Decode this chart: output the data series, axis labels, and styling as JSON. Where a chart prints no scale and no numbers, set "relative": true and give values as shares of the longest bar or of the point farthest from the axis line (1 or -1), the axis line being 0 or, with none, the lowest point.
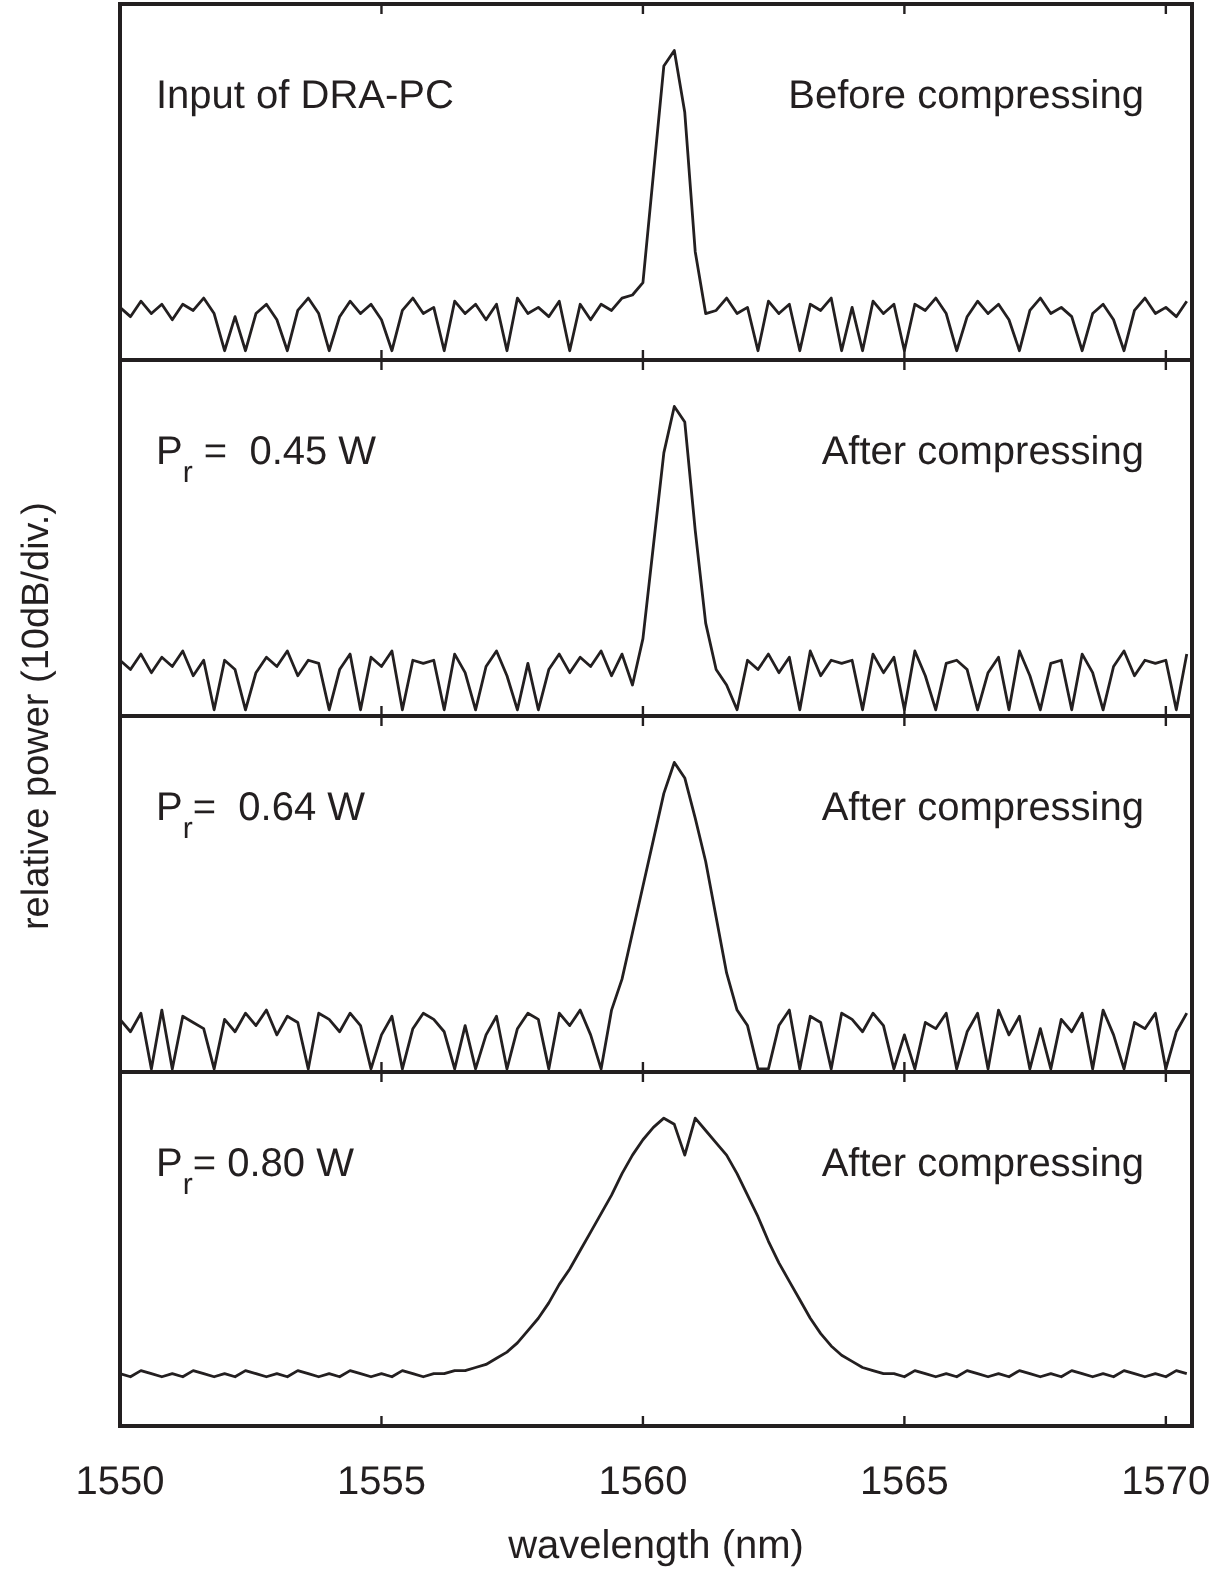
{
  "chart_data": [
    {
      "type": "line",
      "ylabel": "relative power (10dB/div.)",
      "relative": true,
      "xlim": [
        1550,
        1570.5
      ],
      "xticks": [
        1550,
        1555,
        1560,
        1565,
        1570
      ],
      "tick_labels": false,
      "annotations": [
        "Input of DRA-PC",
        "Before compressing"
      ],
      "x": [
        1550,
        1550.2,
        1550.4,
        1550.6,
        1550.8,
        1551,
        1551.2,
        1551.4,
        1551.6,
        1551.8,
        1552,
        1552.2,
        1552.4,
        1552.6,
        1552.8,
        1553,
        1553.2,
        1553.4,
        1553.6,
        1553.8,
        1554,
        1554.2,
        1554.4,
        1554.6,
        1554.8,
        1555,
        1555.2,
        1555.4,
        1555.6,
        1555.8,
        1556,
        1556.2,
        1556.4,
        1556.6,
        1556.8,
        1557,
        1557.2,
        1557.4,
        1557.6,
        1557.8,
        1558,
        1558.2,
        1558.4,
        1558.6,
        1558.8,
        1559,
        1559.2,
        1559.4,
        1559.6,
        1559.8,
        1560,
        1560.2,
        1560.4,
        1560.6,
        1560.8,
        1561,
        1561.2,
        1561.4,
        1561.6,
        1561.8,
        1562,
        1562.2,
        1562.4,
        1562.6,
        1562.8,
        1563,
        1563.2,
        1563.4,
        1563.6,
        1563.8,
        1564,
        1564.2,
        1564.4,
        1564.6,
        1564.8,
        1565,
        1565.2,
        1565.4,
        1565.6,
        1565.8,
        1566,
        1566.2,
        1566.4,
        1566.6,
        1566.8,
        1567,
        1567.2,
        1567.4,
        1567.6,
        1567.8,
        1568,
        1568.2,
        1568.4,
        1568.6,
        1568.8,
        1569,
        1569.2,
        1569.4,
        1569.6,
        1569.8,
        1570,
        1570.2,
        1570.4
      ],
      "series": [
        {
          "color": "#231f20",
          "values": [
            0.17,
            0.14,
            0.19,
            0.15,
            0.18,
            0.13,
            0.18,
            0.16,
            0.2,
            0.15,
            0.03,
            0.14,
            0.03,
            0.15,
            0.18,
            0.13,
            0.03,
            0.16,
            0.2,
            0.15,
            0.03,
            0.14,
            0.19,
            0.15,
            0.18,
            0.13,
            0.03,
            0.16,
            0.2,
            0.15,
            0.17,
            0.03,
            0.19,
            0.15,
            0.18,
            0.13,
            0.18,
            0.03,
            0.2,
            0.15,
            0.17,
            0.14,
            0.19,
            0.03,
            0.18,
            0.13,
            0.18,
            0.16,
            0.2,
            0.21,
            0.25,
            0.6,
            0.95,
            1.0,
            0.8,
            0.35,
            0.15,
            0.16,
            0.2,
            0.15,
            0.17,
            0.03,
            0.19,
            0.15,
            0.18,
            0.03,
            0.18,
            0.16,
            0.2,
            0.03,
            0.17,
            0.03,
            0.19,
            0.15,
            0.18,
            0.03,
            0.18,
            0.16,
            0.2,
            0.15,
            0.03,
            0.14,
            0.19,
            0.15,
            0.18,
            0.13,
            0.03,
            0.16,
            0.2,
            0.15,
            0.17,
            0.14,
            0.03,
            0.15,
            0.18,
            0.13,
            0.03,
            0.16,
            0.2,
            0.15,
            0.17,
            0.14,
            0.19
          ]
        }
      ]
    },
    {
      "type": "line",
      "relative": true,
      "xlim": [
        1550,
        1570.5
      ],
      "xticks": [
        1550,
        1555,
        1560,
        1565,
        1570
      ],
      "tick_labels": false,
      "annotations": [
        "P$_{r}$ =  0.45 W",
        "After compressing"
      ],
      "x": [
        1550,
        1550.2,
        1550.4,
        1550.6,
        1550.8,
        1551,
        1551.2,
        1551.4,
        1551.6,
        1551.8,
        1552,
        1552.2,
        1552.4,
        1552.6,
        1552.8,
        1553,
        1553.2,
        1553.4,
        1553.6,
        1553.8,
        1554,
        1554.2,
        1554.4,
        1554.6,
        1554.8,
        1555,
        1555.2,
        1555.4,
        1555.6,
        1555.8,
        1556,
        1556.2,
        1556.4,
        1556.6,
        1556.8,
        1557,
        1557.2,
        1557.4,
        1557.6,
        1557.8,
        1558,
        1558.2,
        1558.4,
        1558.6,
        1558.8,
        1559,
        1559.2,
        1559.4,
        1559.6,
        1559.8,
        1560,
        1560.2,
        1560.4,
        1560.6,
        1560.8,
        1561,
        1561.2,
        1561.4,
        1561.6,
        1561.8,
        1562,
        1562.2,
        1562.4,
        1562.6,
        1562.8,
        1563,
        1563.2,
        1563.4,
        1563.6,
        1563.8,
        1564,
        1564.2,
        1564.4,
        1564.6,
        1564.8,
        1565,
        1565.2,
        1565.4,
        1565.6,
        1565.8,
        1566,
        1566.2,
        1566.4,
        1566.6,
        1566.8,
        1567,
        1567.2,
        1567.4,
        1567.6,
        1567.8,
        1568,
        1568.2,
        1568.4,
        1568.6,
        1568.8,
        1569,
        1569.2,
        1569.4,
        1569.6,
        1569.8,
        1570,
        1570.2,
        1570.4
      ],
      "series": [
        {
          "color": "#231f20",
          "values": [
            0.18,
            0.15,
            0.2,
            0.14,
            0.19,
            0.16,
            0.21,
            0.13,
            0.18,
            0.02,
            0.18,
            0.15,
            0.02,
            0.14,
            0.19,
            0.16,
            0.21,
            0.13,
            0.18,
            0.17,
            0.02,
            0.15,
            0.2,
            0.02,
            0.19,
            0.16,
            0.21,
            0.02,
            0.18,
            0.17,
            0.18,
            0.02,
            0.2,
            0.14,
            0.02,
            0.16,
            0.21,
            0.13,
            0.02,
            0.17,
            0.02,
            0.15,
            0.2,
            0.14,
            0.19,
            0.16,
            0.21,
            0.13,
            0.2,
            0.1,
            0.25,
            0.55,
            0.85,
            1.0,
            0.95,
            0.6,
            0.3,
            0.15,
            0.1,
            0.02,
            0.18,
            0.15,
            0.2,
            0.14,
            0.19,
            0.02,
            0.21,
            0.13,
            0.18,
            0.17,
            0.18,
            0.02,
            0.2,
            0.14,
            0.19,
            0.02,
            0.21,
            0.13,
            0.02,
            0.17,
            0.18,
            0.15,
            0.02,
            0.14,
            0.19,
            0.02,
            0.21,
            0.13,
            0.02,
            0.17,
            0.18,
            0.02,
            0.2,
            0.14,
            0.02,
            0.16,
            0.21,
            0.13,
            0.18,
            0.17,
            0.18,
            0.02,
            0.2
          ]
        }
      ]
    },
    {
      "type": "line",
      "relative": true,
      "xlim": [
        1550,
        1570.5
      ],
      "xticks": [
        1550,
        1555,
        1560,
        1565,
        1570
      ],
      "tick_labels": false,
      "annotations": [
        "P$_{r}$=  0.64 W",
        "After compressing"
      ],
      "x": [
        1550,
        1550.2,
        1550.4,
        1550.6,
        1550.8,
        1551,
        1551.2,
        1551.4,
        1551.6,
        1551.8,
        1552,
        1552.2,
        1552.4,
        1552.6,
        1552.8,
        1553,
        1553.2,
        1553.4,
        1553.6,
        1553.8,
        1554,
        1554.2,
        1554.4,
        1554.6,
        1554.8,
        1555,
        1555.2,
        1555.4,
        1555.6,
        1555.8,
        1556,
        1556.2,
        1556.4,
        1556.6,
        1556.8,
        1557,
        1557.2,
        1557.4,
        1557.6,
        1557.8,
        1558,
        1558.2,
        1558.4,
        1558.6,
        1558.8,
        1559,
        1559.2,
        1559.4,
        1559.6,
        1559.8,
        1560,
        1560.2,
        1560.4,
        1560.6,
        1560.8,
        1561,
        1561.2,
        1561.4,
        1561.6,
        1561.8,
        1562,
        1562.2,
        1562.4,
        1562.6,
        1562.8,
        1563,
        1563.2,
        1563.4,
        1563.6,
        1563.8,
        1564,
        1564.2,
        1564.4,
        1564.6,
        1564.8,
        1565,
        1565.2,
        1565.4,
        1565.6,
        1565.8,
        1566,
        1566.2,
        1566.4,
        1566.6,
        1566.8,
        1567,
        1567.2,
        1567.4,
        1567.6,
        1567.8,
        1568,
        1568.2,
        1568.4,
        1568.6,
        1568.8,
        1569,
        1569.2,
        1569.4,
        1569.6,
        1569.8,
        1570,
        1570.2,
        1570.4
      ],
      "series": [
        {
          "color": "#231f20",
          "values": [
            0.17,
            0.13,
            0.19,
            0.01,
            0.2,
            0.01,
            0.18,
            0.16,
            0.14,
            0.01,
            0.17,
            0.13,
            0.19,
            0.15,
            0.2,
            0.12,
            0.18,
            0.16,
            0.01,
            0.19,
            0.17,
            0.13,
            0.19,
            0.15,
            0.01,
            0.12,
            0.18,
            0.01,
            0.14,
            0.19,
            0.17,
            0.13,
            0.01,
            0.15,
            0.01,
            0.12,
            0.18,
            0.01,
            0.14,
            0.19,
            0.17,
            0.01,
            0.19,
            0.15,
            0.2,
            0.12,
            0.01,
            0.2,
            0.3,
            0.45,
            0.6,
            0.75,
            0.9,
            1.0,
            0.95,
            0.82,
            0.68,
            0.5,
            0.32,
            0.2,
            0.15,
            0.01,
            0.01,
            0.15,
            0.2,
            0.01,
            0.18,
            0.16,
            0.01,
            0.19,
            0.17,
            0.13,
            0.19,
            0.15,
            0.01,
            0.12,
            0.01,
            0.16,
            0.14,
            0.19,
            0.01,
            0.13,
            0.19,
            0.01,
            0.2,
            0.12,
            0.18,
            0.01,
            0.14,
            0.01,
            0.17,
            0.13,
            0.19,
            0.01,
            0.2,
            0.12,
            0.01,
            0.16,
            0.14,
            0.19,
            0.01,
            0.13,
            0.19
          ]
        }
      ]
    },
    {
      "type": "line",
      "xlabel": "wavelength (nm)",
      "relative": true,
      "xlim": [
        1550,
        1570.5
      ],
      "xticks": [
        1550,
        1555,
        1560,
        1565,
        1570
      ],
      "tick_labels": "x",
      "annotations": [
        "P$_{r}$= 0.80 W",
        "After compressing"
      ],
      "x": [
        1550,
        1550.2,
        1550.4,
        1550.6,
        1550.8,
        1551,
        1551.2,
        1551.4,
        1551.6,
        1551.8,
        1552,
        1552.2,
        1552.4,
        1552.6,
        1552.8,
        1553,
        1553.2,
        1553.4,
        1553.6,
        1553.8,
        1554,
        1554.2,
        1554.4,
        1554.6,
        1554.8,
        1555,
        1555.2,
        1555.4,
        1555.6,
        1555.8,
        1556,
        1556.2,
        1556.4,
        1556.6,
        1556.8,
        1557,
        1557.2,
        1557.4,
        1557.6,
        1557.8,
        1558,
        1558.2,
        1558.4,
        1558.6,
        1558.8,
        1559,
        1559.2,
        1559.4,
        1559.6,
        1559.8,
        1560,
        1560.2,
        1560.4,
        1560.6,
        1560.8,
        1561,
        1561.2,
        1561.4,
        1561.6,
        1561.8,
        1562,
        1562.2,
        1562.4,
        1562.6,
        1562.8,
        1563,
        1563.2,
        1563.4,
        1563.6,
        1563.8,
        1564,
        1564.2,
        1564.4,
        1564.6,
        1564.8,
        1565,
        1565.2,
        1565.4,
        1565.6,
        1565.8,
        1566,
        1566.2,
        1566.4,
        1566.6,
        1566.8,
        1567,
        1567.2,
        1567.4,
        1567.6,
        1567.8,
        1568,
        1568.2,
        1568.4,
        1568.6,
        1568.8,
        1569,
        1569.2,
        1569.4,
        1569.6,
        1569.8,
        1570,
        1570.2,
        1570.4
      ],
      "series": [
        {
          "color": "#231f20",
          "values": [
            0.17,
            0.16,
            0.18,
            0.17,
            0.16,
            0.17,
            0.16,
            0.18,
            0.17,
            0.16,
            0.17,
            0.16,
            0.18,
            0.17,
            0.16,
            0.17,
            0.16,
            0.18,
            0.17,
            0.16,
            0.17,
            0.16,
            0.18,
            0.17,
            0.16,
            0.17,
            0.16,
            0.18,
            0.17,
            0.16,
            0.17,
            0.17,
            0.18,
            0.18,
            0.19,
            0.2,
            0.22,
            0.24,
            0.27,
            0.31,
            0.35,
            0.4,
            0.46,
            0.51,
            0.57,
            0.63,
            0.69,
            0.75,
            0.82,
            0.88,
            0.93,
            0.97,
            1.0,
            0.98,
            0.88,
            1.0,
            0.96,
            0.92,
            0.88,
            0.82,
            0.75,
            0.68,
            0.6,
            0.53,
            0.47,
            0.41,
            0.35,
            0.3,
            0.26,
            0.23,
            0.21,
            0.19,
            0.18,
            0.17,
            0.17,
            0.16,
            0.18,
            0.17,
            0.16,
            0.17,
            0.16,
            0.18,
            0.17,
            0.16,
            0.17,
            0.16,
            0.18,
            0.17,
            0.16,
            0.17,
            0.16,
            0.18,
            0.17,
            0.16,
            0.17,
            0.16,
            0.18,
            0.17,
            0.16,
            0.17,
            0.16,
            0.18,
            0.17
          ]
        }
      ]
    }
  ]
}
